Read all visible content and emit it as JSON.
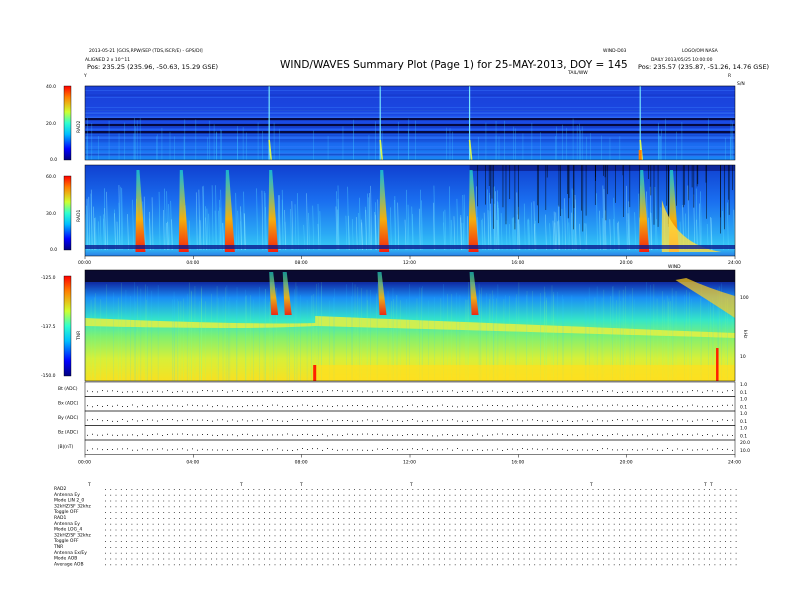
{
  "header": {
    "title": "WIND/WAVES Summary Plot (Page 1) for 25-MAY-2013, DOY = 145",
    "left_line1": "2013-05-21 [GCIS,RPW/SEP (TDS,ISCR/E) - GPS/DI]",
    "left_line2": "ALIGNED 2 x 10^11",
    "left_line3": "Pos:  235.25 (235.96, -50.63, 15.29 GSE)",
    "center_small": "WIND-D03",
    "right_line1": "LOGO/OM NASA",
    "right_line2": "DAILY  2013/05/25 10:00:00",
    "right_line3": "Pos:  235.57 (235.87, -51.26, 14.76 GSE)",
    "tail_label": "TAIL/WW",
    "corner_y": "Y",
    "corner_r": "R",
    "corner_right": "S/N"
  },
  "chart_data": [
    {
      "type": "heatmap",
      "name": "RAD2",
      "ylabel": "RAD2",
      "yticks": [
        "40.0",
        "20.0",
        "0.0"
      ],
      "ylim": [
        0,
        40
      ],
      "colormap": "jet",
      "events_hours": [
        6.8,
        10.9,
        14.2,
        20.5
      ]
    },
    {
      "type": "heatmap",
      "name": "RAD1",
      "ylabel": "RAD1",
      "yticks": [
        "60.0",
        "30.0",
        "0.0"
      ],
      "ylim": [
        0,
        60
      ],
      "xticks": [
        "00:00",
        "04:00",
        "08:00",
        "12:00",
        "16:00",
        "20:00",
        "24:00"
      ],
      "colormap": "jet",
      "events_hours": [
        1.9,
        3.5,
        5.2,
        6.8,
        10.9,
        14.2,
        20.5,
        21.6
      ]
    },
    {
      "type": "heatmap",
      "name": "TNR",
      "ylabel": "TNR",
      "yticks": [
        "-125.0",
        "-137.5",
        "-150.0"
      ],
      "ylim": [
        -150,
        -125
      ],
      "right_ticks": [
        "100",
        "10"
      ],
      "right_label": "kHz",
      "top_right_label": "WIND",
      "colormap": "jet",
      "events_hours": [
        6.8,
        7.3,
        10.8,
        14.2
      ]
    },
    {
      "type": "line",
      "strips": [
        {
          "label": "Bt (ADC)",
          "right": [
            "1.0",
            "0.1"
          ]
        },
        {
          "label": "Bx (ADC)",
          "right": [
            "1.0",
            "0.1"
          ]
        },
        {
          "label": "By (ADC)",
          "right": [
            "1.0",
            "0.1"
          ]
        },
        {
          "label": "Bz (ADC)",
          "right": [
            "1.0",
            "0.1"
          ]
        },
        {
          "label": "|B|(nT)",
          "right": [
            "20.0",
            "10.0"
          ]
        }
      ],
      "xticks": [
        "00:00",
        "04:00",
        "08:00",
        "12:00",
        "16:00",
        "20:00",
        "24:00"
      ]
    }
  ],
  "info_block": {
    "rows": [
      "RAD2",
      "Antenna   Ey",
      "Mode    LIN 2_0",
      "32kHZ/SF  32khz",
      "Toggle    OFF",
      "RAD1",
      "Antenna   Ey",
      "Mode    LOG_4",
      "32kHZ/SF  32khz",
      "Toggle    OFF",
      "TNR",
      "Antenna   Ex/Ey",
      "Mode    AOB",
      "Average   AOB"
    ],
    "tick_markers": [
      "T",
      "T",
      "T",
      "T",
      "T",
      "T",
      "T"
    ]
  }
}
